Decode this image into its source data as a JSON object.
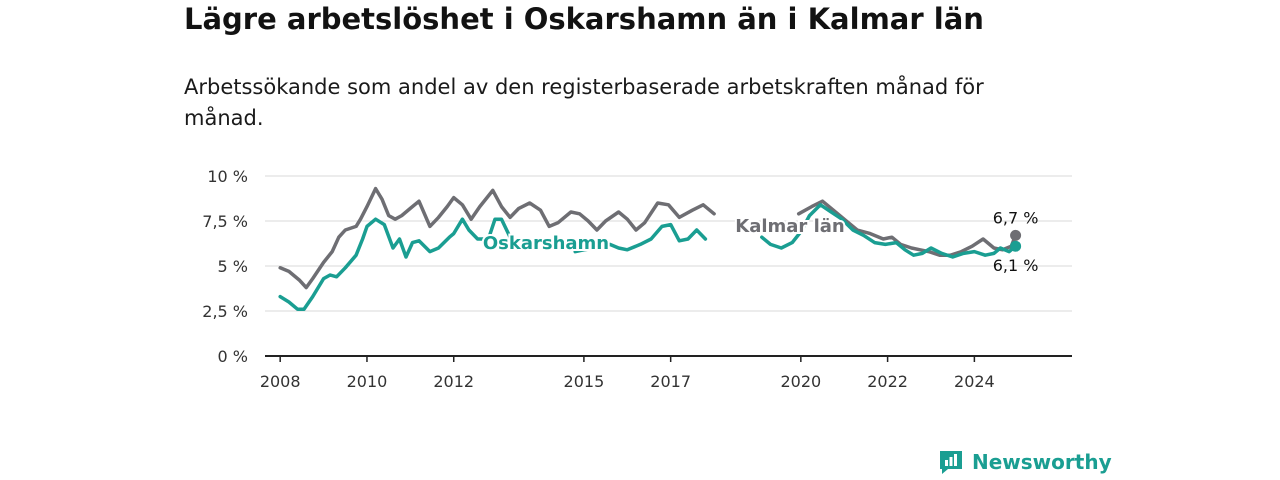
{
  "title": "Lägre arbetslöshet i Oskarshamn än i Kalmar län",
  "subtitle": "Arbetssökande som andel av den registerbaserade arbetskraften månad för månad.",
  "brand": {
    "name": "Newsworthy",
    "icon": "newsworthy-logo-icon"
  },
  "colors": {
    "oskarshamn": "#1a9e92",
    "kalmar": "#6e6e73",
    "grid": "#d9d9d9",
    "axis": "#222222"
  },
  "chart_data": {
    "type": "line",
    "y_ticks": [
      0,
      2.5,
      5,
      7.5,
      10
    ],
    "y_tick_labels": [
      "0 %",
      "2,5 %",
      "5 %",
      "7,5 %",
      "10 %"
    ],
    "x_ticks": [
      2008,
      2010,
      2012,
      2015,
      2017,
      2020,
      2022,
      2024
    ],
    "x_tick_labels": [
      "2008",
      "2010",
      "2012",
      "2015",
      "2017",
      "2020",
      "2022",
      "2024"
    ],
    "ylim": [
      0,
      10
    ],
    "grid": true,
    "series": [
      {
        "name": "Kalmar län",
        "end_label": "6,7 %",
        "points": [
          [
            2008.0,
            4.9
          ],
          [
            2008.2,
            4.7
          ],
          [
            2008.45,
            4.2
          ],
          [
            2008.6,
            3.8
          ],
          [
            2008.75,
            4.3
          ],
          [
            2009.0,
            5.2
          ],
          [
            2009.2,
            5.8
          ],
          [
            2009.35,
            6.6
          ],
          [
            2009.5,
            7.0
          ],
          [
            2009.75,
            7.2
          ],
          [
            2009.85,
            7.6
          ],
          [
            2010.0,
            8.3
          ],
          [
            2010.2,
            9.3
          ],
          [
            2010.35,
            8.7
          ],
          [
            2010.5,
            7.8
          ],
          [
            2010.65,
            7.6
          ],
          [
            2010.8,
            7.8
          ],
          [
            2011.0,
            8.2
          ],
          [
            2011.2,
            8.6
          ],
          [
            2011.45,
            7.2
          ],
          [
            2011.65,
            7.7
          ],
          [
            2011.85,
            8.3
          ],
          [
            2012.0,
            8.8
          ],
          [
            2012.2,
            8.4
          ],
          [
            2012.4,
            7.6
          ],
          [
            2012.6,
            8.3
          ],
          [
            2012.9,
            9.2
          ],
          [
            2013.1,
            8.3
          ],
          [
            2013.3,
            7.7
          ],
          [
            2013.5,
            8.2
          ],
          [
            2013.75,
            8.5
          ],
          [
            2014.0,
            8.1
          ],
          [
            2014.2,
            7.2
          ],
          [
            2014.4,
            7.4
          ],
          [
            2014.7,
            8.0
          ],
          [
            2014.9,
            7.9
          ],
          [
            2015.1,
            7.5
          ],
          [
            2015.3,
            7.0
          ],
          [
            2015.5,
            7.5
          ],
          [
            2015.8,
            8.0
          ],
          [
            2016.0,
            7.6
          ],
          [
            2016.2,
            7.0
          ],
          [
            2016.4,
            7.4
          ],
          [
            2016.7,
            8.5
          ],
          [
            2016.95,
            8.4
          ],
          [
            2017.2,
            7.7
          ],
          [
            2017.5,
            8.1
          ],
          [
            2017.75,
            8.4
          ],
          [
            2018.0,
            7.9
          ],
          null,
          [
            2019.95,
            7.9
          ],
          [
            2020.25,
            8.3
          ],
          [
            2020.5,
            8.6
          ],
          [
            2020.75,
            8.1
          ],
          [
            2021.0,
            7.6
          ],
          [
            2021.3,
            7.0
          ],
          [
            2021.6,
            6.8
          ],
          [
            2021.9,
            6.5
          ],
          [
            2022.1,
            6.6
          ],
          [
            2022.3,
            6.2
          ],
          [
            2022.55,
            6.0
          ],
          [
            2022.75,
            5.9
          ],
          [
            2022.95,
            5.8
          ],
          [
            2023.2,
            5.6
          ],
          [
            2023.45,
            5.6
          ],
          [
            2023.7,
            5.8
          ],
          [
            2023.95,
            6.1
          ],
          [
            2024.2,
            6.5
          ],
          [
            2024.45,
            6.0
          ],
          [
            2024.65,
            5.9
          ],
          [
            2024.85,
            6.1
          ],
          [
            2024.95,
            6.7
          ]
        ]
      },
      {
        "name": "Oskarshamn",
        "end_label": "6,1 %",
        "points": [
          [
            2008.0,
            3.3
          ],
          [
            2008.2,
            3.0
          ],
          [
            2008.4,
            2.6
          ],
          [
            2008.55,
            2.6
          ],
          [
            2008.75,
            3.3
          ],
          [
            2009.0,
            4.3
          ],
          [
            2009.15,
            4.5
          ],
          [
            2009.3,
            4.4
          ],
          [
            2009.5,
            4.9
          ],
          [
            2009.75,
            5.6
          ],
          [
            2009.9,
            6.5
          ],
          [
            2010.0,
            7.2
          ],
          [
            2010.2,
            7.6
          ],
          [
            2010.4,
            7.3
          ],
          [
            2010.6,
            6.0
          ],
          [
            2010.75,
            6.5
          ],
          [
            2010.9,
            5.5
          ],
          [
            2011.05,
            6.3
          ],
          [
            2011.2,
            6.4
          ],
          [
            2011.45,
            5.8
          ],
          [
            2011.65,
            6.0
          ],
          [
            2011.9,
            6.6
          ],
          [
            2012.0,
            6.8
          ],
          [
            2012.2,
            7.6
          ],
          [
            2012.35,
            7.0
          ],
          [
            2012.55,
            6.5
          ],
          [
            2012.8,
            6.5
          ],
          [
            2012.95,
            7.6
          ],
          [
            2013.1,
            7.6
          ],
          [
            2013.3,
            6.6
          ],
          null,
          [
            2014.8,
            5.8
          ],
          [
            2015.0,
            5.9
          ],
          [
            2015.3,
            6.0
          ],
          [
            2015.6,
            6.2
          ],
          [
            2015.8,
            6.0
          ],
          [
            2016.0,
            5.9
          ],
          [
            2016.3,
            6.2
          ],
          [
            2016.55,
            6.5
          ],
          [
            2016.8,
            7.2
          ],
          [
            2017.0,
            7.3
          ],
          [
            2017.2,
            6.4
          ],
          [
            2017.4,
            6.5
          ],
          [
            2017.6,
            7.0
          ],
          [
            2017.8,
            6.5
          ],
          null,
          [
            2019.1,
            6.6
          ],
          [
            2019.3,
            6.2
          ],
          [
            2019.55,
            6.0
          ],
          [
            2019.8,
            6.3
          ],
          [
            2020.0,
            6.9
          ],
          [
            2020.2,
            7.8
          ],
          [
            2020.45,
            8.4
          ],
          [
            2020.7,
            8.0
          ],
          [
            2020.95,
            7.6
          ],
          [
            2021.2,
            7.0
          ],
          [
            2021.45,
            6.7
          ],
          [
            2021.7,
            6.3
          ],
          [
            2021.95,
            6.2
          ],
          [
            2022.2,
            6.3
          ],
          [
            2022.4,
            5.9
          ],
          [
            2022.6,
            5.6
          ],
          [
            2022.8,
            5.7
          ],
          [
            2023.0,
            6.0
          ],
          [
            2023.25,
            5.7
          ],
          [
            2023.5,
            5.5
          ],
          [
            2023.75,
            5.7
          ],
          [
            2024.0,
            5.8
          ],
          [
            2024.25,
            5.6
          ],
          [
            2024.45,
            5.7
          ],
          [
            2024.6,
            6.0
          ],
          [
            2024.8,
            5.8
          ],
          [
            2024.95,
            6.1
          ]
        ]
      }
    ]
  }
}
